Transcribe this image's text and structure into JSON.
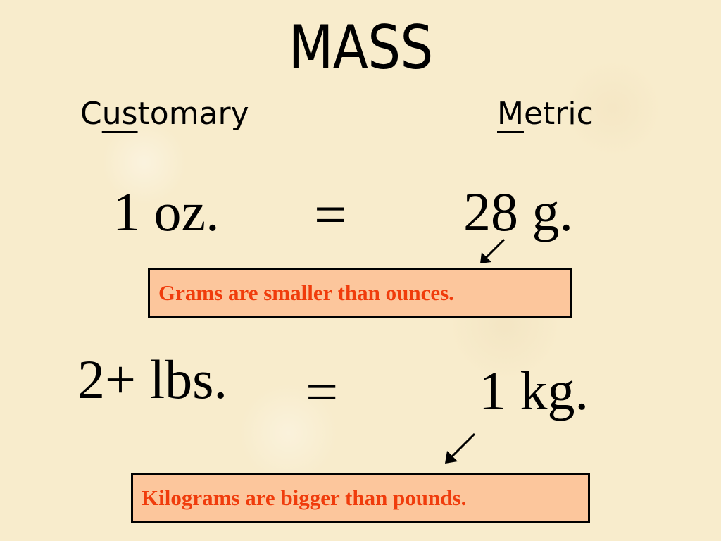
{
  "title": "MASS",
  "columns": {
    "customary": {
      "before": "C",
      "underlined": "us",
      "after": "tomary"
    },
    "metric": {
      "before": "",
      "underlined": "M",
      "after": "etric"
    }
  },
  "conversions": [
    {
      "customary": "1 oz.",
      "symbol": "=",
      "metric": "28 g.",
      "note": "Grams are smaller than ounces."
    },
    {
      "customary": "2+ lbs.",
      "symbol": "=",
      "metric": "1 kg.",
      "note": "Kilograms are bigger than pounds."
    }
  ],
  "colors": {
    "background": "#f8eccc",
    "note_fill": "#fcc69c",
    "note_text": "#f03c0c"
  },
  "icons": [
    "arrow-down-left-icon",
    "arrow-down-left-icon"
  ]
}
